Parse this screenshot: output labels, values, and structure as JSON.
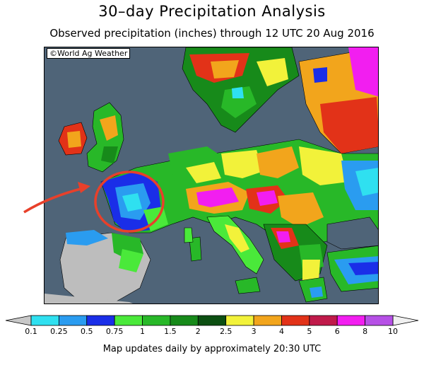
{
  "header": {
    "title": "30–day Precipitation Analysis",
    "subtitle": "Observed precipitation (inches) through 12 UTC 20 Aug 2016"
  },
  "map": {
    "copyright": "©World Ag Weather",
    "region": "Europe",
    "highlight": {
      "shape": "circle",
      "color": "#e8402a",
      "target": "western France"
    }
  },
  "legend": {
    "unit": "inches",
    "ticks": [
      "0.1",
      "0.25",
      "0.5",
      "0.75",
      "1",
      "1.5",
      "2",
      "2.5",
      "3",
      "4",
      "5",
      "6",
      "8",
      "10"
    ],
    "below_color": "#c8c8c8",
    "above_color": "#f0f0f0",
    "colors": [
      "#2fe0f0",
      "#2a9cf0",
      "#1a2ee8",
      "#4ae93a",
      "#28b828",
      "#178a1a",
      "#0c4f12",
      "#f2f23a",
      "#f2a51c",
      "#e23218",
      "#c01a4a",
      "#f21ef0",
      "#b650e6"
    ]
  },
  "footer": {
    "note": "Map updates daily by approximately 20:30 UTC"
  }
}
